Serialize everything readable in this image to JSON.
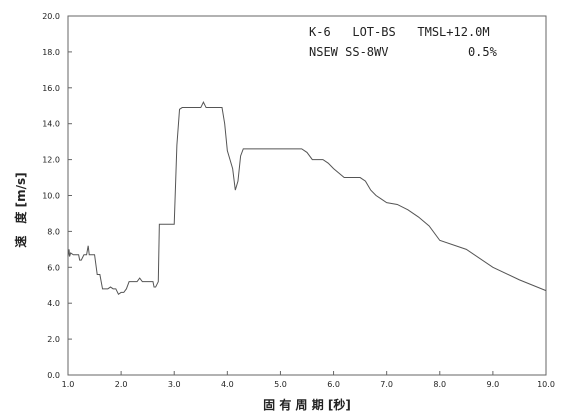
{
  "chart_data": {
    "type": "line",
    "title": "",
    "annotations": [
      "K-6   LOT-BS   TMSL+12.0M",
      "NSEW SS-8WV           0.5%"
    ],
    "xlabel": "固 有 周 期 [秒]",
    "ylabel": "速　度 [m/s]",
    "xlim": [
      1.0,
      10.0
    ],
    "ylim": [
      0.0,
      20.0
    ],
    "xticks": [
      1.0,
      2.0,
      3.0,
      4.0,
      5.0,
      6.0,
      7.0,
      8.0,
      9.0,
      10.0
    ],
    "yticks": [
      0.0,
      2.0,
      4.0,
      6.0,
      8.0,
      10.0,
      12.0,
      14.0,
      16.0,
      18.0,
      20.0
    ],
    "xtick_labels": [
      "1.0",
      "2.0",
      "3.0",
      "4.0",
      "5.0",
      "6.0",
      "7.0",
      "8.0",
      "9.0",
      "10.0"
    ],
    "ytick_labels": [
      "0.0",
      "2.0",
      "4.0",
      "6.0",
      "8.0",
      "10.0",
      "12.0",
      "14.0",
      "16.0",
      "18.0",
      "20.0"
    ],
    "grid": false,
    "series": [
      {
        "name": "",
        "color": "#555555",
        "x": [
          1.0,
          1.02,
          1.03,
          1.05,
          1.1,
          1.15,
          1.2,
          1.22,
          1.25,
          1.3,
          1.35,
          1.38,
          1.4,
          1.45,
          1.5,
          1.55,
          1.6,
          1.65,
          1.7,
          1.75,
          1.8,
          1.85,
          1.9,
          1.95,
          2.0,
          2.05,
          2.1,
          2.15,
          2.2,
          2.3,
          2.35,
          2.4,
          2.5,
          2.6,
          2.62,
          2.65,
          2.7,
          2.72,
          2.75,
          2.8,
          2.9,
          3.0,
          3.05,
          3.1,
          3.15,
          3.2,
          3.3,
          3.4,
          3.5,
          3.55,
          3.6,
          3.65,
          3.7,
          3.8,
          3.9,
          3.95,
          4.0,
          4.05,
          4.1,
          4.15,
          4.2,
          4.25,
          4.3,
          4.35,
          4.4,
          4.5,
          4.6,
          4.8,
          5.0,
          5.2,
          5.4,
          5.5,
          5.6,
          5.7,
          5.8,
          5.9,
          6.0,
          6.2,
          6.3,
          6.4,
          6.5,
          6.6,
          6.7,
          6.8,
          6.9,
          7.0,
          7.2,
          7.4,
          7.6,
          7.8,
          8.0,
          8.5,
          9.0,
          9.5,
          10.0
        ],
        "y": [
          6.6,
          7.0,
          6.6,
          6.8,
          6.7,
          6.7,
          6.7,
          6.4,
          6.4,
          6.7,
          6.7,
          7.2,
          6.7,
          6.7,
          6.7,
          5.6,
          5.6,
          4.8,
          4.8,
          4.8,
          4.9,
          4.8,
          4.8,
          4.5,
          4.6,
          4.6,
          4.8,
          5.2,
          5.2,
          5.2,
          5.4,
          5.2,
          5.2,
          5.2,
          4.9,
          4.9,
          5.2,
          8.4,
          8.4,
          8.4,
          8.4,
          8.4,
          12.8,
          14.8,
          14.9,
          14.9,
          14.9,
          14.9,
          14.9,
          15.2,
          14.9,
          14.9,
          14.9,
          14.9,
          14.9,
          14.0,
          12.5,
          12.0,
          11.5,
          10.3,
          10.8,
          12.2,
          12.6,
          12.6,
          12.6,
          12.6,
          12.6,
          12.6,
          12.6,
          12.6,
          12.6,
          12.4,
          12.0,
          12.0,
          12.0,
          11.8,
          11.5,
          11.0,
          11.0,
          11.0,
          11.0,
          10.8,
          10.3,
          10.0,
          9.8,
          9.6,
          9.5,
          9.2,
          8.8,
          8.3,
          7.5,
          7.0,
          6.0,
          5.3,
          4.7
        ]
      }
    ]
  }
}
